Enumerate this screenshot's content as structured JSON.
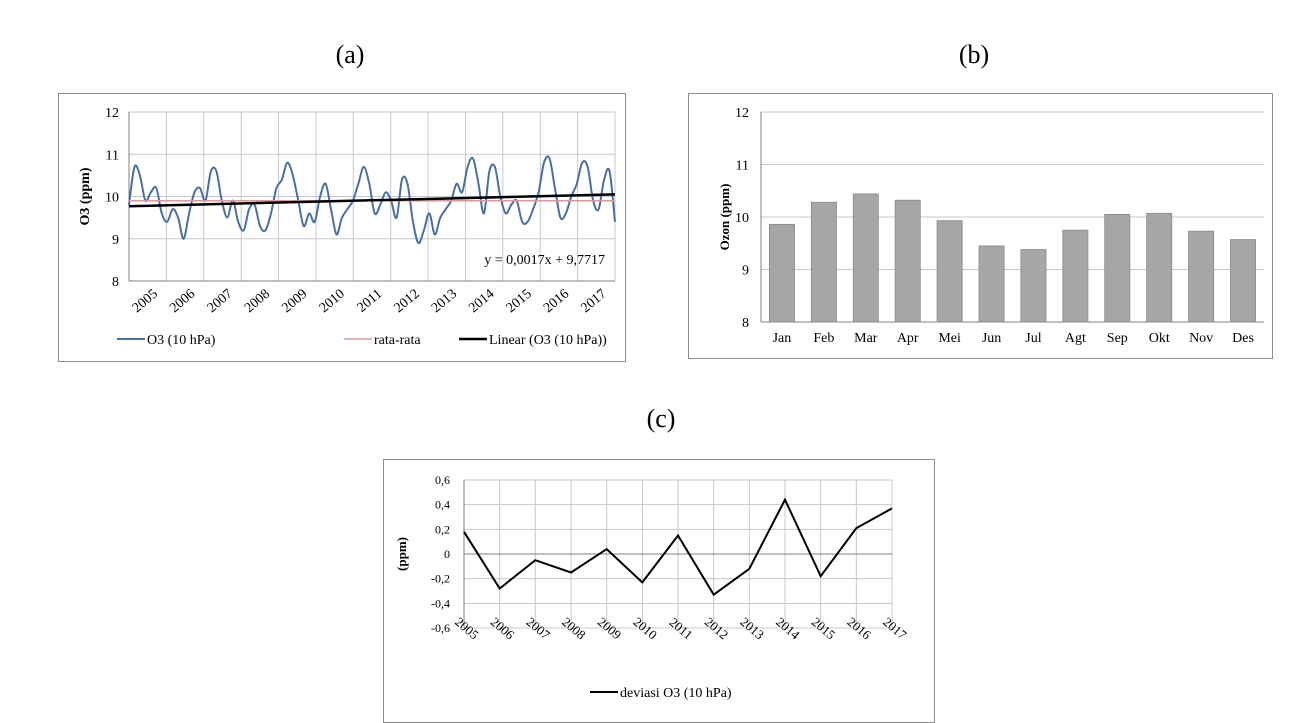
{
  "panels": {
    "a": "(a)",
    "b": "(b)",
    "c": "(c)"
  },
  "chart_data": [
    {
      "type": "line",
      "ylabel": "O3 (ppm)",
      "ylim": [
        8,
        12
      ],
      "yticks": [
        8,
        9,
        10,
        11,
        12
      ],
      "xlabels": [
        "2005",
        "2006",
        "2007",
        "2008",
        "2009",
        "2010",
        "2011",
        "2012",
        "2013",
        "2014",
        "2015",
        "2016",
        "2017"
      ],
      "grid": true,
      "legend_position": "bottom",
      "annotation": "y = 0,0017x + 9,7717",
      "series": [
        {
          "name": "O3 (10 hPa)",
          "color": "#4a6fa5",
          "values": [
            9.8,
            10.7,
            10.5,
            9.9,
            10.1,
            10.2,
            9.6,
            9.4,
            9.7,
            9.5,
            9.0,
            9.6,
            10.1,
            10.2,
            9.9,
            10.6,
            10.6,
            9.9,
            9.5,
            9.9,
            9.4,
            9.2,
            9.7,
            9.8,
            9.3,
            9.2,
            9.6,
            10.2,
            10.4,
            10.8,
            10.5,
            9.9,
            9.3,
            9.6,
            9.4,
            10.0,
            10.3,
            9.7,
            9.1,
            9.5,
            9.7,
            9.9,
            10.3,
            10.7,
            10.3,
            9.6,
            9.8,
            10.1,
            9.9,
            9.5,
            10.4,
            10.3,
            9.4,
            8.9,
            9.2,
            9.6,
            9.1,
            9.5,
            9.7,
            9.9,
            10.3,
            10.1,
            10.7,
            10.9,
            10.3,
            9.6,
            10.6,
            10.7,
            10.0,
            9.6,
            9.8,
            9.9,
            9.4,
            9.4,
            9.7,
            10.1,
            10.8,
            10.9,
            10.2,
            9.5,
            9.6,
            10.0,
            10.3,
            10.8,
            10.7,
            9.9,
            9.7,
            10.4,
            10.6,
            9.4
          ]
        },
        {
          "name": "rata-rata",
          "color": "#d99a9a",
          "linear": [
            9.9,
            9.9
          ]
        },
        {
          "name": "Linear (O3 (10 hPa))",
          "color": "#000000",
          "linear": [
            9.77,
            10.05
          ]
        }
      ]
    },
    {
      "type": "bar",
      "ylabel": "Ozon (ppm)",
      "ylim": [
        8,
        12
      ],
      "yticks": [
        8,
        9,
        10,
        11,
        12
      ],
      "grid": true,
      "color": "#a6a6a6",
      "categories": [
        "Jan",
        "Feb",
        "Mar",
        "Apr",
        "Mei",
        "Jun",
        "Jul",
        "Agt",
        "Sep",
        "Okt",
        "Nov",
        "Des"
      ],
      "values": [
        9.86,
        10.28,
        10.44,
        10.32,
        9.93,
        9.45,
        9.38,
        9.75,
        10.05,
        10.07,
        9.73,
        9.57
      ]
    },
    {
      "type": "line",
      "ylabel": "(ppm)",
      "ylim": [
        -0.6,
        0.6
      ],
      "yticks": [
        "0,6",
        "0,4",
        "0,2",
        "0",
        "-0,2",
        "-0,4",
        "-0,6"
      ],
      "ytick_values": [
        0.6,
        0.4,
        0.2,
        0,
        -0.2,
        -0.4,
        -0.6
      ],
      "grid": true,
      "legend_position": "bottom",
      "categories": [
        "2005",
        "2006",
        "2007",
        "2008",
        "2009",
        "2010",
        "2011",
        "2012",
        "2013",
        "2014",
        "2015",
        "2016",
        "2017"
      ],
      "series": [
        {
          "name": "deviasi O3 (10 hPa)",
          "color": "#000000",
          "values": [
            0.18,
            -0.28,
            -0.05,
            -0.15,
            0.04,
            -0.23,
            0.15,
            -0.33,
            -0.12,
            0.44,
            -0.18,
            0.21,
            0.37
          ]
        }
      ]
    }
  ]
}
